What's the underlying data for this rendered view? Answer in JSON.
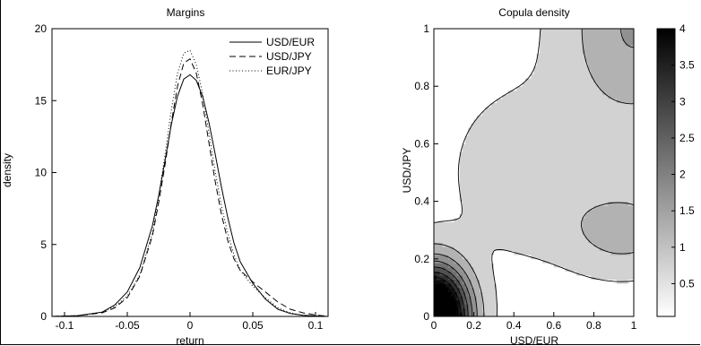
{
  "chart_data": [
    {
      "type": "line",
      "title": "Margins",
      "xlabel": "return",
      "ylabel": "density",
      "xlim": [
        -0.11,
        0.11
      ],
      "ylim": [
        0,
        20
      ],
      "xticks": [
        "-0.1",
        "-0.05",
        "0",
        "0.05",
        "0.1"
      ],
      "xtick_values": [
        -0.1,
        -0.05,
        0,
        0.05,
        0.1
      ],
      "yticks": [
        "0",
        "5",
        "10",
        "15",
        "20"
      ],
      "ytick_values": [
        0,
        5,
        10,
        15,
        20
      ],
      "legend_position": "top-right",
      "x": [
        -0.11,
        -0.09,
        -0.07,
        -0.06,
        -0.05,
        -0.04,
        -0.03,
        -0.025,
        -0.02,
        -0.015,
        -0.01,
        -0.005,
        0,
        0.005,
        0.01,
        0.015,
        0.02,
        0.025,
        0.03,
        0.035,
        0.04,
        0.05,
        0.06,
        0.07,
        0.08,
        0.09,
        0.1,
        0.11
      ],
      "series": [
        {
          "name": "USD/EUR",
          "style": "solid",
          "values": [
            0,
            0.05,
            0.3,
            0.8,
            1.7,
            3.4,
            6.3,
            8.4,
            10.8,
            13.3,
            15.3,
            16.5,
            16.8,
            16.4,
            15.3,
            13.5,
            11.3,
            9.0,
            6.9,
            5.1,
            3.8,
            2.3,
            1.2,
            0.5,
            0.2,
            0.08,
            0.03,
            0
          ]
        },
        {
          "name": "USD/JPY",
          "style": "dashed",
          "values": [
            0,
            0.05,
            0.25,
            0.6,
            1.3,
            2.8,
            5.6,
            7.9,
            10.5,
            13.4,
            16.0,
            17.6,
            17.9,
            16.9,
            14.8,
            12.1,
            9.4,
            7.1,
            5.3,
            4.0,
            3.2,
            2.4,
            1.7,
            1.0,
            0.5,
            0.25,
            0.1,
            0
          ]
        },
        {
          "name": "EUR/JPY",
          "style": "dotted",
          "values": [
            0,
            0.05,
            0.3,
            0.7,
            1.4,
            2.9,
            5.8,
            8.3,
            11.2,
            14.3,
            16.9,
            18.3,
            18.5,
            17.5,
            15.5,
            12.8,
            10.1,
            7.7,
            5.8,
            4.3,
            3.2,
            2.1,
            1.3,
            0.6,
            0.25,
            0.08,
            0.02,
            0
          ]
        }
      ]
    },
    {
      "type": "contour",
      "title": "Copula density",
      "xlabel": "USD/EUR",
      "ylabel": "USD/JPY",
      "xlim": [
        0,
        1
      ],
      "ylim": [
        0,
        1
      ],
      "xticks": [
        "0",
        "0.2",
        "0.4",
        "0.6",
        "0.8",
        "1"
      ],
      "xtick_values": [
        0,
        0.2,
        0.4,
        0.6,
        0.8,
        1
      ],
      "yticks": [
        "0",
        "0.2",
        "0.4",
        "0.6",
        "0.8",
        "1"
      ],
      "ytick_values": [
        0,
        0.2,
        0.4,
        0.6,
        0.8,
        1
      ],
      "levels": [
        0.5,
        1,
        1.5,
        2,
        2.5,
        3,
        3.5,
        4
      ],
      "colorbar_ticks": [
        "0.5",
        "1",
        "1.5",
        "2",
        "2.5",
        "3",
        "3.5",
        "4"
      ],
      "colorbar_tick_values": [
        0.5,
        1,
        1.5,
        2,
        2.5,
        3,
        3.5,
        4
      ],
      "colorbar_range": [
        0.05,
        4
      ],
      "colormap": [
        "#ffffff",
        "#000000"
      ],
      "density_components": [
        {
          "weight": 0.55,
          "mean": [
            0.0,
            0.0
          ],
          "sd": [
            0.12,
            0.12
          ],
          "rho": 0
        },
        {
          "weight": 0.45,
          "mean": [
            1.0,
            1.0
          ],
          "sd": [
            0.24,
            0.24
          ],
          "rho": 0
        },
        {
          "weight": 0.15,
          "mean": [
            0.45,
            0.5
          ],
          "sd": [
            0.22,
            0.18
          ],
          "rho": 0
        },
        {
          "weight": 0.12,
          "mean": [
            0.95,
            0.3
          ],
          "sd": [
            0.2,
            0.1
          ],
          "rho": 0
        }
      ],
      "density_base": 0.3
    }
  ]
}
